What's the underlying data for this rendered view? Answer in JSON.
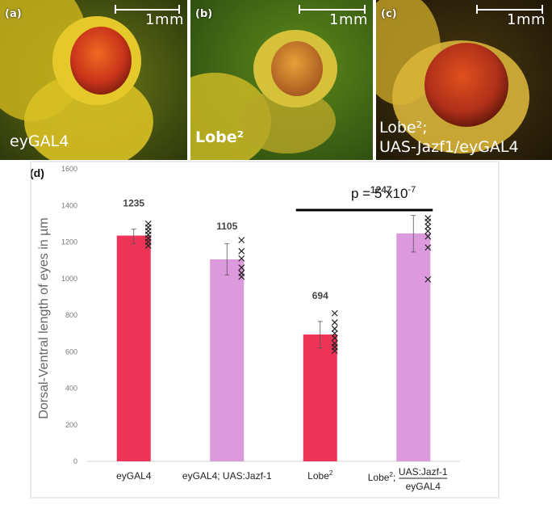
{
  "panels": [
    {
      "tag": "(a)",
      "scale": "1mm",
      "genotype_lines": [
        "eyGAL4"
      ]
    },
    {
      "tag": "(b)",
      "scale": "1mm",
      "genotype_lines": [
        "Lobe²"
      ]
    },
    {
      "tag": "(c)",
      "scale": "1mm",
      "genotype_lines": [
        "Lobe²;",
        "UAS-Jazf1/eyGAL4"
      ]
    }
  ],
  "chart_tag": "(d)",
  "chart_data": {
    "type": "bar",
    "ylabel": "Dorsal-Ventral length of eyes in µm",
    "ylim": [
      0,
      1600
    ],
    "yticks": [
      0,
      200,
      400,
      600,
      800,
      1000,
      1200,
      1400,
      1600
    ],
    "grid": false,
    "categories": [
      "eyGAL4",
      "eyGAL4; UAS:Jazf-1",
      "Lobe²",
      "Lobe²; UAS:Jazf-1 / eyGAL4"
    ],
    "category_labels": [
      {
        "main": "eyGAL4"
      },
      {
        "main": "eyGAL4; UAS:Jazf-1"
      },
      {
        "main": "Lobe",
        "sup": "2"
      },
      {
        "main": "Lobe",
        "sup": "2",
        "tail": ";",
        "numerator": "UAS:Jazf-1",
        "denominator": "eyGAL4"
      }
    ],
    "values": [
      1235,
      1105,
      694,
      1247
    ],
    "value_labels": [
      "1235",
      "1105",
      "694",
      "1247"
    ],
    "error": [
      [
        1190,
        1270
      ],
      [
        1020,
        1190
      ],
      [
        620,
        765
      ],
      [
        1145,
        1345
      ]
    ],
    "colors": [
      "#ee3458",
      "#dc9adc",
      "#ee3458",
      "#dc9adc"
    ],
    "points": [
      [
        1180,
        1200,
        1220,
        1240,
        1260,
        1280,
        1300
      ],
      [
        1010,
        1030,
        1060,
        1110,
        1150,
        1210
      ],
      [
        605,
        625,
        645,
        675,
        700,
        725,
        760,
        810
      ],
      [
        995,
        1170,
        1230,
        1260,
        1285,
        1310,
        1330
      ]
    ],
    "annotation": {
      "text": "p = 5 x10",
      "exponent": "-7",
      "between": [
        2,
        3
      ]
    }
  }
}
